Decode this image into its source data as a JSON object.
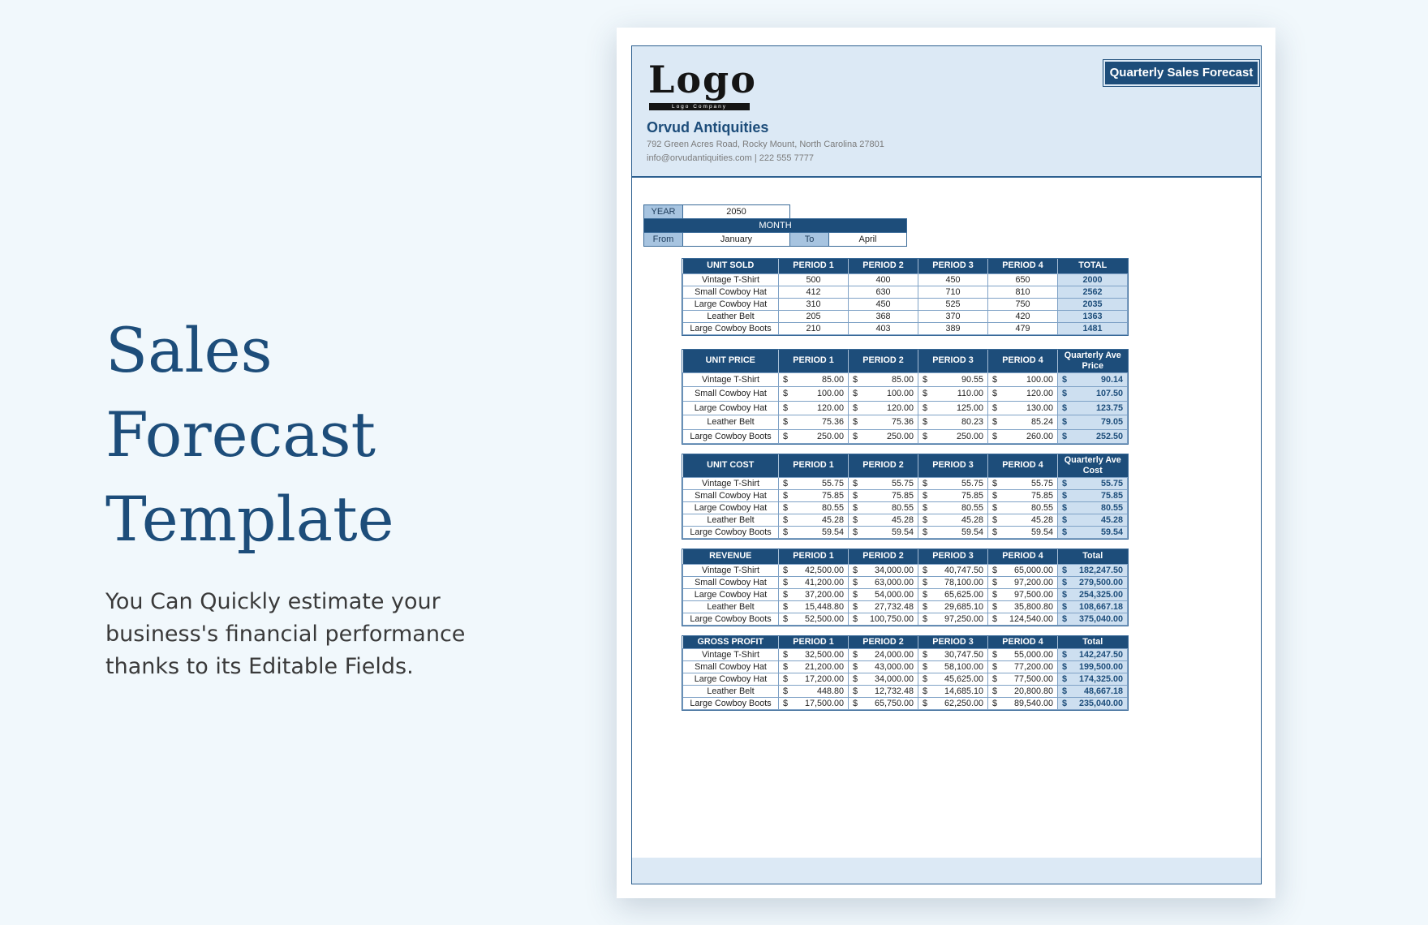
{
  "promo": {
    "title_line1": "Sales Forecast",
    "title_line2": "Template",
    "description": "You Can Quickly estimate your business's financial performance thanks to its Editable Fields."
  },
  "header": {
    "logo": "Logo",
    "logo_sub": "Logo Company",
    "company": "Orvud Antiquities",
    "address": "792 Green Acres Road, Rocky Mount, North Carolina 27801",
    "contact": "info@orvudantiquities.com  |  222 555 7777",
    "doc_title": "Quarterly Sales Forecast"
  },
  "period": {
    "year_label": "YEAR",
    "year": "2050",
    "month_label": "MONTH",
    "from_label": "From",
    "from": "January",
    "to_label": "To",
    "to": "April"
  },
  "tables": {
    "units_sold": {
      "headers": [
        "UNIT SOLD",
        "PERIOD 1",
        "PERIOD 2",
        "PERIOD 3",
        "PERIOD 4",
        "TOTAL"
      ],
      "rows": [
        [
          "Vintage T-Shirt",
          "500",
          "400",
          "450",
          "650",
          "2000"
        ],
        [
          "Small Cowboy Hat",
          "412",
          "630",
          "710",
          "810",
          "2562"
        ],
        [
          "Large Cowboy Hat",
          "310",
          "450",
          "525",
          "750",
          "2035"
        ],
        [
          "Leather Belt",
          "205",
          "368",
          "370",
          "420",
          "1363"
        ],
        [
          "Large Cowboy Boots",
          "210",
          "403",
          "389",
          "479",
          "1481"
        ]
      ]
    },
    "unit_price": {
      "headers": [
        "UNIT PRICE",
        "PERIOD 1",
        "PERIOD 2",
        "PERIOD 3",
        "PERIOD 4",
        "Quarterly Ave Price"
      ],
      "rows": [
        [
          "Vintage T-Shirt",
          "85.00",
          "85.00",
          "90.55",
          "100.00",
          "90.14"
        ],
        [
          "Small Cowboy Hat",
          "100.00",
          "100.00",
          "110.00",
          "120.00",
          "107.50"
        ],
        [
          "Large Cowboy Hat",
          "120.00",
          "120.00",
          "125.00",
          "130.00",
          "123.75"
        ],
        [
          "Leather Belt",
          "75.36",
          "75.36",
          "80.23",
          "85.24",
          "79.05"
        ],
        [
          "Large Cowboy Boots",
          "250.00",
          "250.00",
          "250.00",
          "260.00",
          "252.50"
        ]
      ]
    },
    "unit_cost": {
      "headers": [
        "UNIT COST",
        "PERIOD 1",
        "PERIOD 2",
        "PERIOD 3",
        "PERIOD 4",
        "Quarterly Ave Cost"
      ],
      "rows": [
        [
          "Vintage T-Shirt",
          "55.75",
          "55.75",
          "55.75",
          "55.75",
          "55.75"
        ],
        [
          "Small Cowboy Hat",
          "75.85",
          "75.85",
          "75.85",
          "75.85",
          "75.85"
        ],
        [
          "Large Cowboy Hat",
          "80.55",
          "80.55",
          "80.55",
          "80.55",
          "80.55"
        ],
        [
          "Leather Belt",
          "45.28",
          "45.28",
          "45.28",
          "45.28",
          "45.28"
        ],
        [
          "Large Cowboy Boots",
          "59.54",
          "59.54",
          "59.54",
          "59.54",
          "59.54"
        ]
      ]
    },
    "revenue": {
      "headers": [
        "REVENUE",
        "PERIOD 1",
        "PERIOD 2",
        "PERIOD 3",
        "PERIOD 4",
        "Total"
      ],
      "rows": [
        [
          "Vintage T-Shirt",
          "42,500.00",
          "34,000.00",
          "40,747.50",
          "65,000.00",
          "182,247.50"
        ],
        [
          "Small Cowboy Hat",
          "41,200.00",
          "63,000.00",
          "78,100.00",
          "97,200.00",
          "279,500.00"
        ],
        [
          "Large Cowboy Hat",
          "37,200.00",
          "54,000.00",
          "65,625.00",
          "97,500.00",
          "254,325.00"
        ],
        [
          "Leather Belt",
          "15,448.80",
          "27,732.48",
          "29,685.10",
          "35,800.80",
          "108,667.18"
        ],
        [
          "Large Cowboy Boots",
          "52,500.00",
          "100,750.00",
          "97,250.00",
          "124,540.00",
          "375,040.00"
        ]
      ]
    },
    "gross_profit": {
      "headers": [
        "GROSS PROFIT",
        "PERIOD 1",
        "PERIOD 2",
        "PERIOD 3",
        "PERIOD 4",
        "Total"
      ],
      "rows": [
        [
          "Vintage T-Shirt",
          "32,500.00",
          "24,000.00",
          "30,747.50",
          "55,000.00",
          "142,247.50"
        ],
        [
          "Small Cowboy Hat",
          "21,200.00",
          "43,000.00",
          "58,100.00",
          "77,200.00",
          "199,500.00"
        ],
        [
          "Large Cowboy Hat",
          "17,200.00",
          "34,000.00",
          "45,625.00",
          "77,500.00",
          "174,325.00"
        ],
        [
          "Leather Belt",
          "448.80",
          "12,732.48",
          "14,685.10",
          "20,800.80",
          "48,667.18"
        ],
        [
          "Large Cowboy Boots",
          "17,500.00",
          "65,750.00",
          "62,250.00",
          "89,540.00",
          "235,040.00"
        ]
      ]
    },
    "currency_symbol": "$"
  }
}
